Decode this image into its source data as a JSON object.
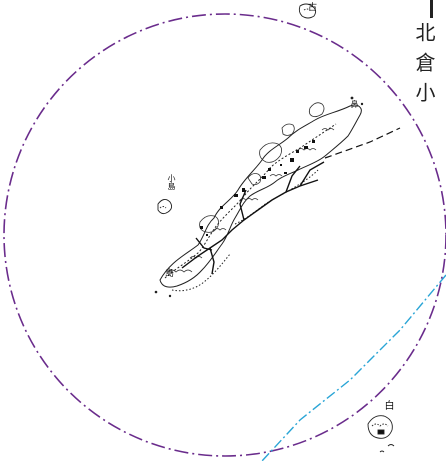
{
  "map": {
    "side_title": "北倉小",
    "place_labels": [
      {
        "id": "label-north-hamlet",
        "text": "古"
      },
      {
        "id": "label-islet-west",
        "text": "小島"
      },
      {
        "id": "label-port-west",
        "text": "島"
      },
      {
        "id": "label-east-cape",
        "text": "鼻"
      },
      {
        "id": "label-south-islet",
        "text": "白"
      }
    ],
    "colors": {
      "boundary_circle": "#6a2c8c",
      "dashed_route": "#2aa5d6",
      "coastline": "#222222",
      "road": "#111111"
    },
    "icons": {
      "compass": "compass-icon",
      "settlement": "settlement-icon"
    }
  }
}
